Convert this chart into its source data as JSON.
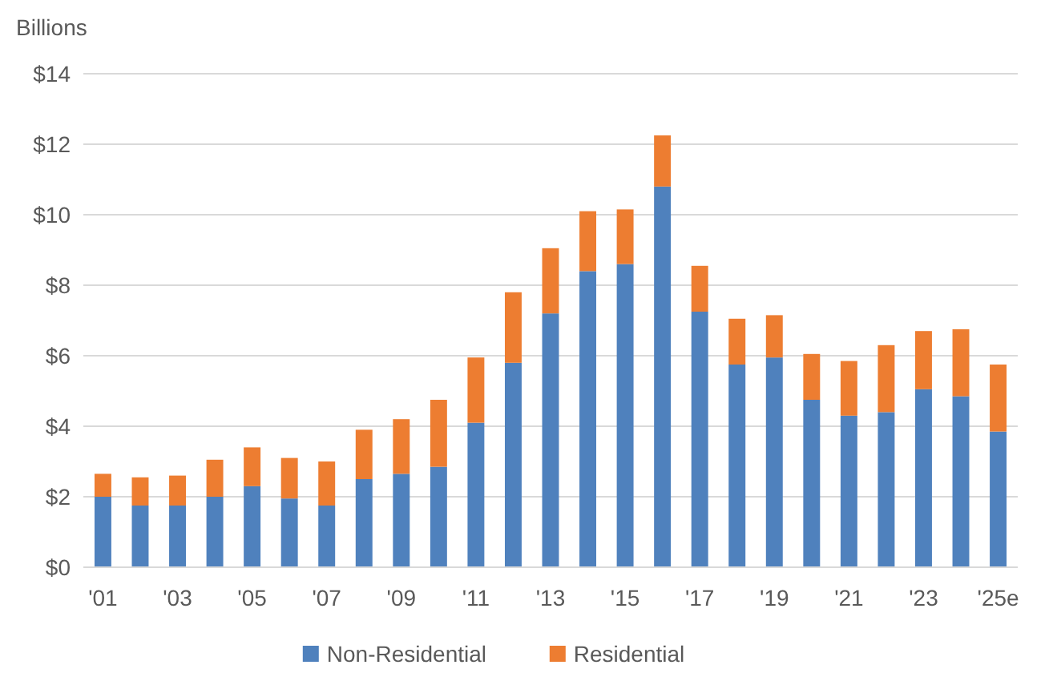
{
  "chart_data": {
    "type": "bar",
    "stacked": true,
    "ylabel": "Billions",
    "categories": [
      "'01",
      null,
      "'03",
      null,
      "'05",
      null,
      "'07",
      null,
      "'09",
      null,
      "'11",
      null,
      "'13",
      null,
      "'15",
      null,
      "'17",
      null,
      "'19",
      null,
      "'21",
      null,
      "'23",
      null,
      "'25e"
    ],
    "series": [
      {
        "name": "Non-Residential",
        "color": "#4f81bd",
        "values": [
          2.0,
          1.75,
          1.75,
          2.0,
          2.3,
          1.95,
          1.75,
          2.5,
          2.65,
          2.85,
          4.1,
          5.8,
          7.2,
          8.4,
          8.6,
          10.8,
          7.25,
          5.75,
          5.95,
          4.75,
          4.3,
          4.4,
          5.05,
          4.85,
          3.85
        ]
      },
      {
        "name": "Residential",
        "color": "#ed7d31",
        "values": [
          0.65,
          0.8,
          0.85,
          1.05,
          1.1,
          1.15,
          1.25,
          1.4,
          1.55,
          1.9,
          1.85,
          2.0,
          1.85,
          1.7,
          1.55,
          1.45,
          1.3,
          1.3,
          1.2,
          1.3,
          1.55,
          1.9,
          1.65,
          1.9,
          1.9
        ]
      }
    ],
    "ylim": [
      0,
      14
    ],
    "yticks": [
      {
        "value": 0,
        "label": "$0"
      },
      {
        "value": 2,
        "label": "$2"
      },
      {
        "value": 4,
        "label": "$4"
      },
      {
        "value": 6,
        "label": "$6"
      },
      {
        "value": 8,
        "label": "$8"
      },
      {
        "value": 10,
        "label": "$10"
      },
      {
        "value": 12,
        "label": "$12"
      },
      {
        "value": 14,
        "label": "$14"
      }
    ],
    "grid": "y",
    "legend": "bottom"
  }
}
